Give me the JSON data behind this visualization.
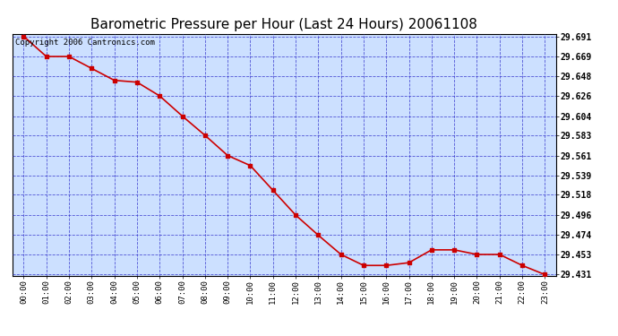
{
  "title": "Barometric Pressure per Hour (Last 24 Hours) 20061108",
  "copyright": "Copyright 2006 Cantronics.com",
  "x_labels": [
    "00:00",
    "01:00",
    "02:00",
    "03:00",
    "04:00",
    "05:00",
    "06:00",
    "07:00",
    "08:00",
    "09:00",
    "10:00",
    "11:00",
    "12:00",
    "13:00",
    "14:00",
    "15:00",
    "16:00",
    "17:00",
    "18:00",
    "19:00",
    "20:00",
    "21:00",
    "22:00",
    "23:00"
  ],
  "y_values": [
    29.691,
    29.669,
    29.669,
    29.656,
    29.643,
    29.641,
    29.626,
    29.604,
    29.583,
    29.561,
    29.55,
    29.523,
    29.496,
    29.474,
    29.453,
    29.441,
    29.441,
    29.444,
    29.458,
    29.458,
    29.453,
    29.453,
    29.441,
    29.431
  ],
  "y_ticks": [
    29.691,
    29.669,
    29.648,
    29.626,
    29.604,
    29.583,
    29.561,
    29.539,
    29.518,
    29.496,
    29.474,
    29.453,
    29.431
  ],
  "y_min": 29.431,
  "y_max": 29.691,
  "line_color": "#cc0000",
  "marker_color": "#cc0000",
  "bg_color": "#ffffff",
  "plot_bg": "#cce0ff",
  "grid_color": "#3333cc",
  "title_color": "#000000",
  "border_color": "#000000",
  "title_fontsize": 11,
  "copyright_fontsize": 6.5
}
